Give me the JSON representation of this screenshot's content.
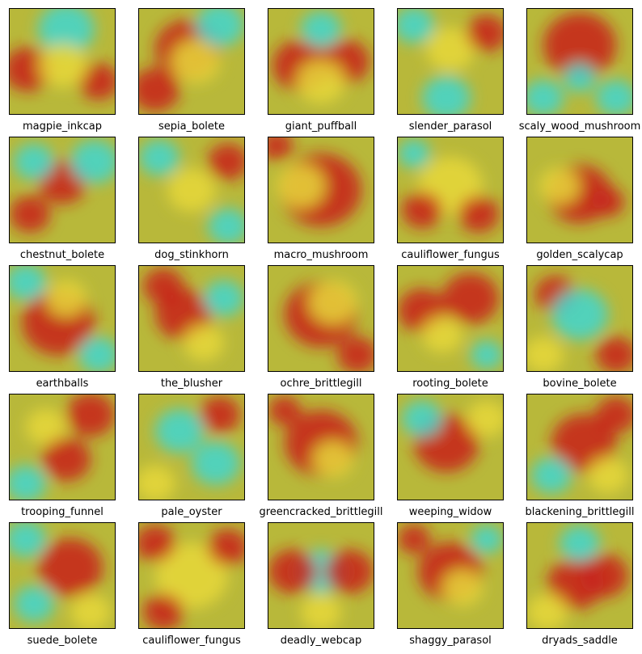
{
  "panels": [
    {
      "label": "magpie_inkcap"
    },
    {
      "label": "sepia_bolete"
    },
    {
      "label": "giant_puffball"
    },
    {
      "label": "slender_parasol"
    },
    {
      "label": "scaly_wood_mushroom"
    },
    {
      "label": "chestnut_bolete"
    },
    {
      "label": "dog_stinkhorn"
    },
    {
      "label": "macro_mushroom"
    },
    {
      "label": "cauliflower_fungus"
    },
    {
      "label": "golden_scalycap"
    },
    {
      "label": "earthballs"
    },
    {
      "label": "the_blusher"
    },
    {
      "label": "ochre_brittlegill"
    },
    {
      "label": "rooting_bolete"
    },
    {
      "label": "bovine_bolete"
    },
    {
      "label": "trooping_funnel"
    },
    {
      "label": "pale_oyster"
    },
    {
      "label": "greencracked_brittlegill"
    },
    {
      "label": "weeping_widow"
    },
    {
      "label": "blackening_brittlegill"
    },
    {
      "label": "suede_bolete"
    },
    {
      "label": "cauliflower_fungus"
    },
    {
      "label": "deadly_webcap"
    },
    {
      "label": "shaggy_parasol"
    },
    {
      "label": "dryads_saddle"
    }
  ],
  "colors": {
    "heat_low": "#3ed6d0",
    "heat_mid": "#e8d83a",
    "heat_high": "#c8201a",
    "heat_base": "#b8b83a",
    "border": "#000000",
    "background": "#ffffff"
  }
}
